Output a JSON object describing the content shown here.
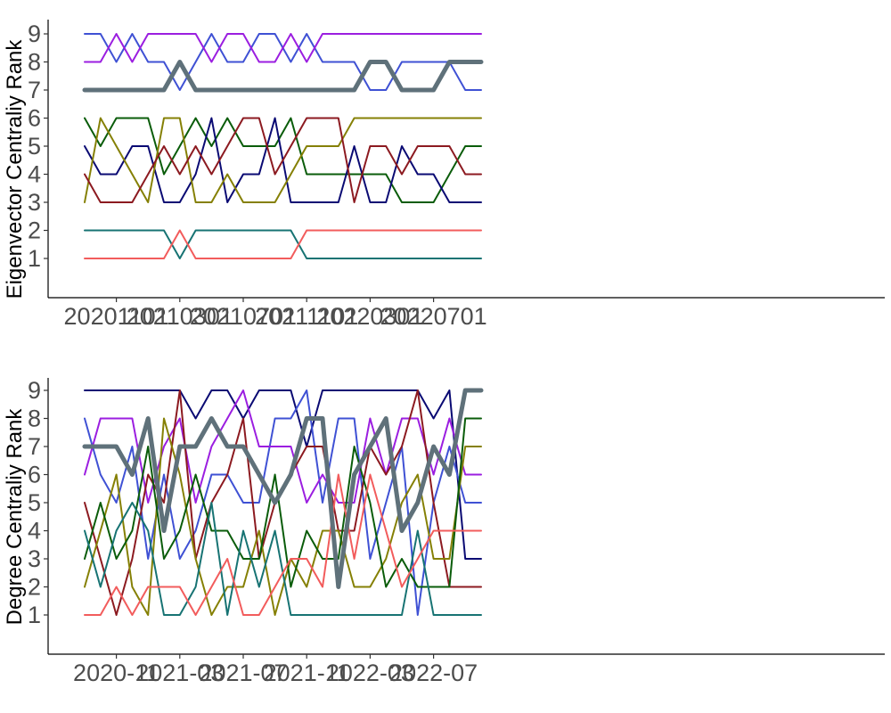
{
  "chart_data": [
    {
      "type": "line",
      "title": "",
      "xlabel": "",
      "ylabel": "Eigenvector Centraliy Rank",
      "x_tick_labels": [
        "20201101",
        "20210301",
        "20210701",
        "20211101",
        "20220301",
        "20220701"
      ],
      "y_ticks": [
        1,
        2,
        3,
        4,
        5,
        6,
        7,
        8,
        9
      ],
      "ylim": [
        0,
        9.4
      ],
      "grid": false,
      "legend": "none",
      "x": [
        "2020-09",
        "2020-10",
        "2020-11",
        "2020-12",
        "2021-01",
        "2021-02",
        "2021-03",
        "2021-04",
        "2021-05",
        "2021-06",
        "2021-07",
        "2021-08",
        "2021-09",
        "2021-10",
        "2021-11",
        "2021-12",
        "2022-01",
        "2022-02",
        "2022-03",
        "2022-04",
        "2022-05",
        "2022-06",
        "2022-07",
        "2022-08",
        "2022-09",
        "2022-10"
      ],
      "series": [
        {
          "color": "#3f51d4",
          "width": 2,
          "values": [
            9,
            9,
            8,
            9,
            8,
            8,
            7,
            8,
            9,
            8,
            8,
            9,
            9,
            8,
            9,
            8,
            8,
            8,
            7,
            7,
            8,
            8,
            8,
            8,
            7,
            7
          ]
        },
        {
          "color": "#9b1ee0",
          "width": 2,
          "values": [
            8,
            8,
            9,
            8,
            9,
            9,
            9,
            9,
            8,
            9,
            9,
            8,
            8,
            9,
            8,
            9,
            9,
            9,
            9,
            9,
            9,
            9,
            9,
            9,
            9,
            9
          ]
        },
        {
          "color": "#5f717a",
          "width": 5,
          "values": [
            7,
            7,
            7,
            7,
            7,
            7,
            8,
            7,
            7,
            7,
            7,
            7,
            7,
            7,
            7,
            7,
            7,
            7,
            8,
            8,
            7,
            7,
            7,
            8,
            8,
            8
          ]
        },
        {
          "color": "#0a5c0a",
          "width": 2,
          "values": [
            6,
            5,
            6,
            6,
            6,
            4,
            5,
            6,
            5,
            6,
            5,
            5,
            5,
            6,
            4,
            4,
            4,
            4,
            4,
            4,
            3,
            3,
            3,
            4,
            5,
            5
          ]
        },
        {
          "color": "#0a0a73",
          "width": 2,
          "values": [
            5,
            4,
            4,
            5,
            5,
            3,
            3,
            4,
            6,
            3,
            4,
            4,
            6,
            3,
            3,
            3,
            3,
            5,
            3,
            3,
            5,
            4,
            4,
            3,
            3,
            3
          ]
        },
        {
          "color": "#858005",
          "width": 2,
          "values": [
            3,
            6,
            5,
            4,
            3,
            6,
            6,
            3,
            3,
            4,
            3,
            3,
            3,
            4,
            5,
            5,
            5,
            6,
            6,
            6,
            6,
            6,
            6,
            6,
            6,
            6
          ]
        },
        {
          "color": "#8c1a20",
          "width": 2,
          "values": [
            4,
            3,
            3,
            3,
            4,
            5,
            4,
            5,
            4,
            5,
            6,
            6,
            4,
            5,
            6,
            6,
            6,
            3,
            5,
            5,
            4,
            5,
            5,
            5,
            4,
            4
          ]
        },
        {
          "color": "#177373",
          "width": 2,
          "values": [
            2,
            2,
            2,
            2,
            2,
            2,
            1,
            2,
            2,
            2,
            2,
            2,
            2,
            2,
            1,
            1,
            1,
            1,
            1,
            1,
            1,
            1,
            1,
            1,
            1,
            1
          ]
        },
        {
          "color": "#f25c5c",
          "width": 2,
          "values": [
            1,
            1,
            1,
            1,
            1,
            1,
            2,
            1,
            1,
            1,
            1,
            1,
            1,
            1,
            2,
            2,
            2,
            2,
            2,
            2,
            2,
            2,
            2,
            2,
            2,
            2
          ]
        }
      ]
    },
    {
      "type": "line",
      "title": "",
      "xlabel": "",
      "ylabel": "Degree Centraliy Rank",
      "x_tick_labels": [
        "2020-11",
        "2021-03",
        "2021-07",
        "2021-11",
        "2022-03",
        "2022-07"
      ],
      "y_ticks": [
        1,
        2,
        3,
        4,
        5,
        6,
        7,
        8,
        9
      ],
      "ylim": [
        0,
        9.4
      ],
      "grid": false,
      "legend": "none",
      "x": [
        "2020-09",
        "2020-10",
        "2020-11",
        "2020-12",
        "2021-01",
        "2021-02",
        "2021-03",
        "2021-04",
        "2021-05",
        "2021-06",
        "2021-07",
        "2021-08",
        "2021-09",
        "2021-10",
        "2021-11",
        "2021-12",
        "2022-01",
        "2022-02",
        "2022-03",
        "2022-04",
        "2022-05",
        "2022-06",
        "2022-07",
        "2022-08",
        "2022-09",
        "2022-10"
      ],
      "series": [
        {
          "color": "#0a0a73",
          "width": 2,
          "values": [
            9,
            9,
            9,
            9,
            9,
            9,
            9,
            8,
            9,
            9,
            8,
            9,
            9,
            9,
            7,
            9,
            9,
            9,
            9,
            9,
            9,
            9,
            8,
            9,
            3,
            3
          ]
        },
        {
          "color": "#3f51d4",
          "width": 2,
          "values": [
            8,
            6,
            5,
            7,
            3,
            6,
            3,
            4,
            6,
            6,
            5,
            5,
            8,
            8,
            9,
            5,
            8,
            8,
            3,
            5,
            7,
            1,
            5,
            7,
            5,
            5
          ]
        },
        {
          "color": "#9b1ee0",
          "width": 2,
          "values": [
            6,
            8,
            8,
            8,
            5,
            7,
            8,
            5,
            7,
            8,
            9,
            7,
            7,
            7,
            5,
            6,
            5,
            5,
            8,
            6,
            8,
            8,
            6,
            8,
            6,
            6
          ]
        },
        {
          "color": "#8c1a20",
          "width": 2,
          "values": [
            5,
            3,
            1,
            3,
            6,
            5,
            9,
            3,
            5,
            6,
            8,
            3,
            5,
            6,
            7,
            7,
            4,
            4,
            7,
            6,
            7,
            9,
            5,
            2,
            2,
            2
          ]
        },
        {
          "color": "#858005",
          "width": 2,
          "values": [
            2,
            4,
            6,
            2,
            1,
            8,
            6,
            3,
            1,
            2,
            2,
            4,
            1,
            3,
            2,
            4,
            4,
            2,
            2,
            3,
            5,
            6,
            3,
            3,
            7,
            7
          ]
        },
        {
          "color": "#0a5c0a",
          "width": 2,
          "values": [
            3,
            5,
            3,
            4,
            7,
            3,
            4,
            6,
            4,
            4,
            3,
            3,
            6,
            2,
            4,
            3,
            3,
            7,
            5,
            2,
            3,
            2,
            2,
            2,
            8,
            8
          ]
        },
        {
          "color": "#177373",
          "width": 2,
          "values": [
            4,
            2,
            4,
            5,
            4,
            1,
            1,
            2,
            5,
            1,
            4,
            2,
            4,
            1,
            1,
            1,
            1,
            1,
            1,
            1,
            1,
            4,
            1,
            1,
            1,
            1
          ]
        },
        {
          "color": "#f25c5c",
          "width": 2,
          "values": [
            1,
            1,
            2,
            1,
            2,
            2,
            2,
            1,
            2,
            3,
            1,
            1,
            2,
            3,
            3,
            2,
            6,
            3,
            6,
            4,
            2,
            3,
            4,
            4,
            4,
            4
          ]
        },
        {
          "color": "#5f717a",
          "width": 5,
          "values": [
            7,
            7,
            7,
            6,
            8,
            4,
            7,
            7,
            8,
            7,
            7,
            6,
            5,
            6,
            8,
            8,
            2,
            6,
            7,
            8,
            4,
            5,
            7,
            6,
            9,
            9
          ]
        }
      ]
    }
  ]
}
